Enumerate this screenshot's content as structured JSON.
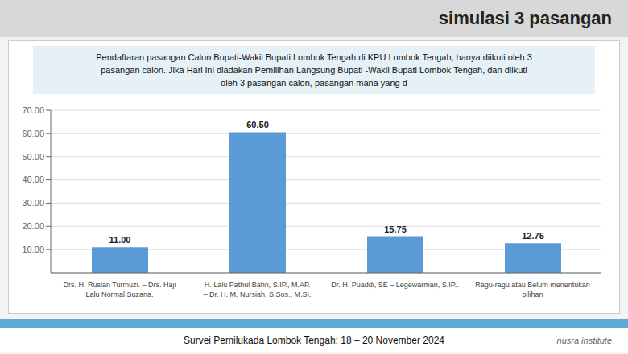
{
  "chart_data": {
    "type": "bar",
    "title": "simulasi 3 pasangan",
    "annotations": [
      "Pendaftaran pasangan Calon Bupati-Wakil Bupati Lombok Tengah di KPU Lombok Tengah,  hanya diikuti oleh 3",
      "pasangan calon. Jika Hari ini diadakan Pemilihan Langsung Bupati -Wakil Bupati Lombok Tengah, dan diikuti",
      "oleh 3  pasangan calon, pasangan mana yang d",
      "Survei Pemilukada Lombok Tengah: 18 – 20 November 2024",
      "nusra institute"
    ],
    "categories": [
      "Drs. H. Ruslan Turmuzi. – Drs. Haji\nLalu Normal Suzana.",
      "H. Lalu Pathul Bahri, S.IP., M.AP.\n– Dr. H. M. Nursiah, S.Sos., M.SI.",
      "Dr.  H. Puaddi, SE – Legewarman, S.IP..",
      "Ragu-ragu atau Belum menentukan\npilihan"
    ],
    "values": [
      11.0,
      60.5,
      15.75,
      12.75
    ],
    "value_labels": [
      "11.00",
      "60.50",
      "15.75",
      "12.75"
    ],
    "data_labels": true,
    "color": "#5b9bd5",
    "ylim": [
      0,
      70
    ],
    "yticks": [
      {
        "value": 10,
        "label": "10.00"
      },
      {
        "value": 20,
        "label": "20.00"
      },
      {
        "value": 30,
        "label": "30.00"
      },
      {
        "value": 40,
        "label": "40.00"
      },
      {
        "value": 50,
        "label": "50.00"
      },
      {
        "value": 60,
        "label": "60.00"
      },
      {
        "value": 70,
        "label": "70.00"
      }
    ],
    "grid": true
  }
}
